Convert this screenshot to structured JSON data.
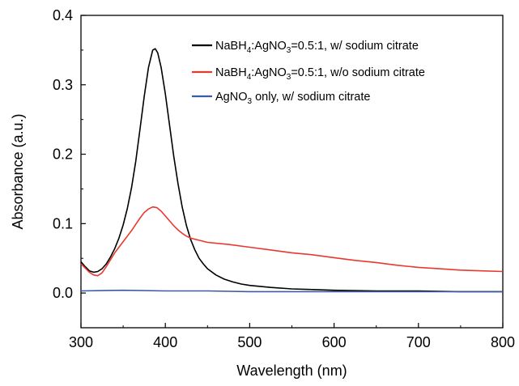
{
  "chart_data": {
    "type": "line",
    "xlabel": "Wavelength (nm)",
    "ylabel": "Absorbance (a.u.)",
    "xlim": [
      300,
      800
    ],
    "ylim": [
      -0.05,
      0.4
    ],
    "x_ticks": [
      "300",
      "400",
      "500",
      "600",
      "700",
      "800"
    ],
    "y_ticks": [
      "0.0",
      "0.1",
      "0.2",
      "0.3",
      "0.4"
    ],
    "grid": false,
    "legend_position": "top-right",
    "series": [
      {
        "legend": {
          "a": "NaBH",
          "b": "4",
          "c": ":AgNO",
          "d": "3",
          "e": "=0.5:1, w/ sodium citrate"
        },
        "color": "#000000",
        "points": [
          [
            300,
            0.045
          ],
          [
            305,
            0.038
          ],
          [
            310,
            0.032
          ],
          [
            315,
            0.03
          ],
          [
            320,
            0.031
          ],
          [
            325,
            0.035
          ],
          [
            330,
            0.042
          ],
          [
            335,
            0.052
          ],
          [
            340,
            0.064
          ],
          [
            345,
            0.079
          ],
          [
            350,
            0.098
          ],
          [
            355,
            0.122
          ],
          [
            360,
            0.152
          ],
          [
            365,
            0.19
          ],
          [
            370,
            0.236
          ],
          [
            375,
            0.283
          ],
          [
            380,
            0.325
          ],
          [
            385,
            0.35
          ],
          [
            388,
            0.352
          ],
          [
            391,
            0.346
          ],
          [
            395,
            0.325
          ],
          [
            400,
            0.287
          ],
          [
            405,
            0.242
          ],
          [
            410,
            0.197
          ],
          [
            415,
            0.158
          ],
          [
            420,
            0.124
          ],
          [
            425,
            0.097
          ],
          [
            430,
            0.077
          ],
          [
            435,
            0.062
          ],
          [
            440,
            0.05
          ],
          [
            445,
            0.042
          ],
          [
            450,
            0.035
          ],
          [
            460,
            0.026
          ],
          [
            470,
            0.02
          ],
          [
            480,
            0.016
          ],
          [
            490,
            0.013
          ],
          [
            500,
            0.011
          ],
          [
            525,
            0.008
          ],
          [
            550,
            0.006
          ],
          [
            575,
            0.005
          ],
          [
            600,
            0.004
          ],
          [
            650,
            0.003
          ],
          [
            700,
            0.003
          ],
          [
            750,
            0.002
          ],
          [
            800,
            0.002
          ]
        ]
      },
      {
        "legend": {
          "a": "NaBH",
          "b": "4",
          "c": ":AgNO",
          "d": "3",
          "e": "=0.5:1, w/o sodium citrate"
        },
        "color": "#e8392f",
        "points": [
          [
            300,
            0.042
          ],
          [
            305,
            0.036
          ],
          [
            310,
            0.03
          ],
          [
            315,
            0.026
          ],
          [
            320,
            0.025
          ],
          [
            325,
            0.029
          ],
          [
            330,
            0.038
          ],
          [
            335,
            0.048
          ],
          [
            340,
            0.058
          ],
          [
            345,
            0.066
          ],
          [
            350,
            0.074
          ],
          [
            355,
            0.082
          ],
          [
            360,
            0.09
          ],
          [
            365,
            0.099
          ],
          [
            370,
            0.108
          ],
          [
            375,
            0.116
          ],
          [
            380,
            0.121
          ],
          [
            385,
            0.124
          ],
          [
            390,
            0.123
          ],
          [
            395,
            0.118
          ],
          [
            400,
            0.111
          ],
          [
            405,
            0.104
          ],
          [
            410,
            0.097
          ],
          [
            415,
            0.091
          ],
          [
            420,
            0.086
          ],
          [
            425,
            0.082
          ],
          [
            430,
            0.079
          ],
          [
            440,
            0.076
          ],
          [
            450,
            0.073
          ],
          [
            475,
            0.07
          ],
          [
            500,
            0.066
          ],
          [
            525,
            0.062
          ],
          [
            550,
            0.058
          ],
          [
            575,
            0.055
          ],
          [
            600,
            0.051
          ],
          [
            625,
            0.047
          ],
          [
            650,
            0.044
          ],
          [
            675,
            0.04
          ],
          [
            700,
            0.037
          ],
          [
            725,
            0.035
          ],
          [
            750,
            0.033
          ],
          [
            775,
            0.032
          ],
          [
            800,
            0.031
          ]
        ]
      },
      {
        "legend": {
          "a": "AgNO",
          "b": "3",
          "c": " only, w/ sodium citrate"
        },
        "color": "#3b5ba8",
        "points": [
          [
            300,
            0.003
          ],
          [
            350,
            0.004
          ],
          [
            400,
            0.003
          ],
          [
            450,
            0.003
          ],
          [
            500,
            0.002
          ],
          [
            550,
            0.002
          ],
          [
            600,
            0.002
          ],
          [
            650,
            0.002
          ],
          [
            700,
            0.002
          ],
          [
            750,
            0.002
          ],
          [
            800,
            0.002
          ]
        ]
      }
    ]
  }
}
